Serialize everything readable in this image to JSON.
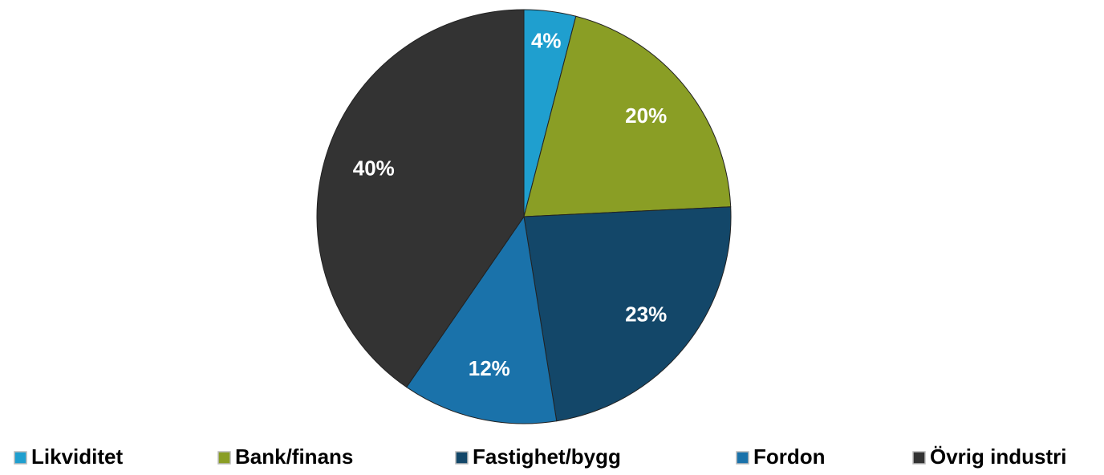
{
  "chart_data": {
    "type": "pie",
    "categories": [
      "Likviditet",
      "Bank/finans",
      "Fastighet/bygg",
      "Fordon",
      "Övrig industri"
    ],
    "values": [
      4,
      20,
      23,
      12,
      40
    ],
    "value_labels": [
      "4%",
      "20%",
      "23%",
      "12%",
      "40%"
    ],
    "colors": [
      "#1f9fcf",
      "#8a9e25",
      "#134769",
      "#1a72aa",
      "#333333"
    ],
    "legend": "bottom"
  }
}
